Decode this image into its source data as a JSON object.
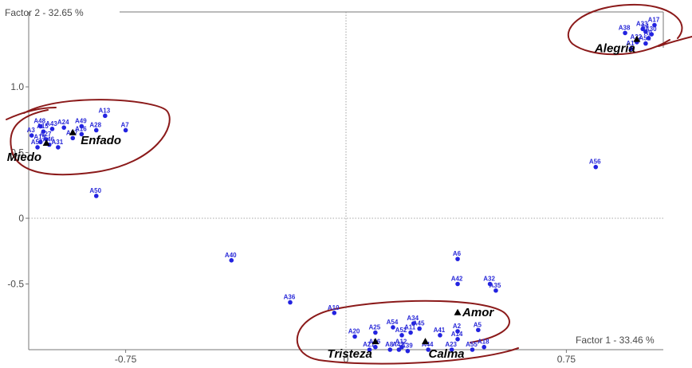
{
  "chart_data": {
    "type": "scatter",
    "xlabel": "Factor 1  -  33.46 %",
    "ylabel": "Factor 2  -  32.65 %",
    "xlim": [
      -1.08,
      1.08
    ],
    "ylim": [
      -1.0,
      1.57
    ],
    "x_ticks": [
      {
        "v": -0.75,
        "label": "-0.75"
      },
      {
        "v": 0,
        "label": "0"
      },
      {
        "v": 0.75,
        "label": "0.75"
      }
    ],
    "y_ticks": [
      {
        "v": 1.0,
        "label": "1.0"
      },
      {
        "v": 0.5,
        "label": "0.5"
      },
      {
        "v": 0,
        "label": "0"
      },
      {
        "v": -0.5,
        "label": "-0.5"
      }
    ],
    "grid": "dotted zero lines",
    "point_color": "#2323e0",
    "category_color": "#000000",
    "highlight_color": "#8b1a1a",
    "points": [
      {
        "label": "A1",
        "x": 0.97,
        "y": 1.29
      },
      {
        "label": "A4",
        "x": 1.02,
        "y": 1.42
      },
      {
        "label": "A9",
        "x": 1.03,
        "y": 1.37
      },
      {
        "label": "A22",
        "x": 0.99,
        "y": 1.34
      },
      {
        "label": "A30",
        "x": 1.04,
        "y": 1.4
      },
      {
        "label": "A33",
        "x": 1.01,
        "y": 1.44
      },
      {
        "label": "A17",
        "x": 1.05,
        "y": 1.47
      },
      {
        "label": "A38",
        "x": 0.95,
        "y": 1.41
      },
      {
        "label": "A51",
        "x": 1.02,
        "y": 1.33
      },
      {
        "label": "A3",
        "x": -1.07,
        "y": 0.63
      },
      {
        "label": "A15",
        "x": -1.03,
        "y": 0.66
      },
      {
        "label": "A16",
        "x": -0.9,
        "y": 0.64
      },
      {
        "label": "A19",
        "x": -1.04,
        "y": 0.58
      },
      {
        "label": "A24",
        "x": -0.96,
        "y": 0.69
      },
      {
        "label": "A27",
        "x": -1.02,
        "y": 0.6
      },
      {
        "label": "A31",
        "x": -0.98,
        "y": 0.54
      },
      {
        "label": "A37",
        "x": -0.93,
        "y": 0.61
      },
      {
        "label": "A43",
        "x": -1.0,
        "y": 0.68
      },
      {
        "label": "A46",
        "x": -1.01,
        "y": 0.56
      },
      {
        "label": "A48",
        "x": -1.04,
        "y": 0.7
      },
      {
        "label": "A49",
        "x": -0.9,
        "y": 0.7
      },
      {
        "label": "A53",
        "x": -1.05,
        "y": 0.54
      },
      {
        "label": "A13",
        "x": -0.82,
        "y": 0.78
      },
      {
        "label": "A28",
        "x": -0.85,
        "y": 0.67
      },
      {
        "label": "A7",
        "x": -0.75,
        "y": 0.67
      },
      {
        "label": "A50",
        "x": -0.85,
        "y": 0.17
      },
      {
        "label": "A56",
        "x": 0.85,
        "y": 0.39
      },
      {
        "label": "A40",
        "x": -0.39,
        "y": -0.32
      },
      {
        "label": "A36",
        "x": -0.19,
        "y": -0.64
      },
      {
        "label": "A10",
        "x": -0.04,
        "y": -0.72
      },
      {
        "label": "A6",
        "x": 0.38,
        "y": -0.31
      },
      {
        "label": "A42",
        "x": 0.38,
        "y": -0.5
      },
      {
        "label": "A32",
        "x": 0.49,
        "y": -0.5
      },
      {
        "label": "A35",
        "x": 0.51,
        "y": -0.55
      },
      {
        "label": "A20",
        "x": 0.03,
        "y": -0.9
      },
      {
        "label": "A25",
        "x": 0.1,
        "y": -0.87
      },
      {
        "label": "A54",
        "x": 0.16,
        "y": -0.83
      },
      {
        "label": "A34",
        "x": 0.23,
        "y": -0.8
      },
      {
        "label": "A45",
        "x": 0.25,
        "y": -0.84
      },
      {
        "label": "A11",
        "x": 0.22,
        "y": -0.87
      },
      {
        "label": "A52",
        "x": 0.19,
        "y": -0.89
      },
      {
        "label": "A41",
        "x": 0.32,
        "y": -0.89
      },
      {
        "label": "A2",
        "x": 0.38,
        "y": -0.86
      },
      {
        "label": "A5",
        "x": 0.45,
        "y": -0.85
      },
      {
        "label": "A14",
        "x": 0.38,
        "y": -0.92
      },
      {
        "label": "A26",
        "x": 0.1,
        "y": -0.98
      },
      {
        "label": "A12",
        "x": 0.19,
        "y": -0.98
      },
      {
        "label": "A21",
        "x": 0.08,
        "y": -1.0
      },
      {
        "label": "A8",
        "x": 0.15,
        "y": -1.0
      },
      {
        "label": "A47",
        "x": 0.18,
        "y": -1.0
      },
      {
        "label": "A39",
        "x": 0.21,
        "y": -1.01
      },
      {
        "label": "A44",
        "x": 0.28,
        "y": -1.0
      },
      {
        "label": "A23",
        "x": 0.36,
        "y": -1.0
      },
      {
        "label": "A55",
        "x": 0.43,
        "y": -1.0
      },
      {
        "label": "A18",
        "x": 0.47,
        "y": -0.98
      }
    ],
    "categories": [
      {
        "label": "Alegría",
        "x": 0.99,
        "y": 1.36
      },
      {
        "label": "Enfado",
        "x": -0.93,
        "y": 0.65
      },
      {
        "label": "Miedo",
        "x": -1.02,
        "y": 0.57
      },
      {
        "label": "Amor",
        "x": 0.38,
        "y": -0.72
      },
      {
        "label": "Tristeza",
        "x": 0.1,
        "y": -0.94
      },
      {
        "label": "Calma",
        "x": 0.27,
        "y": -0.94
      }
    ]
  }
}
